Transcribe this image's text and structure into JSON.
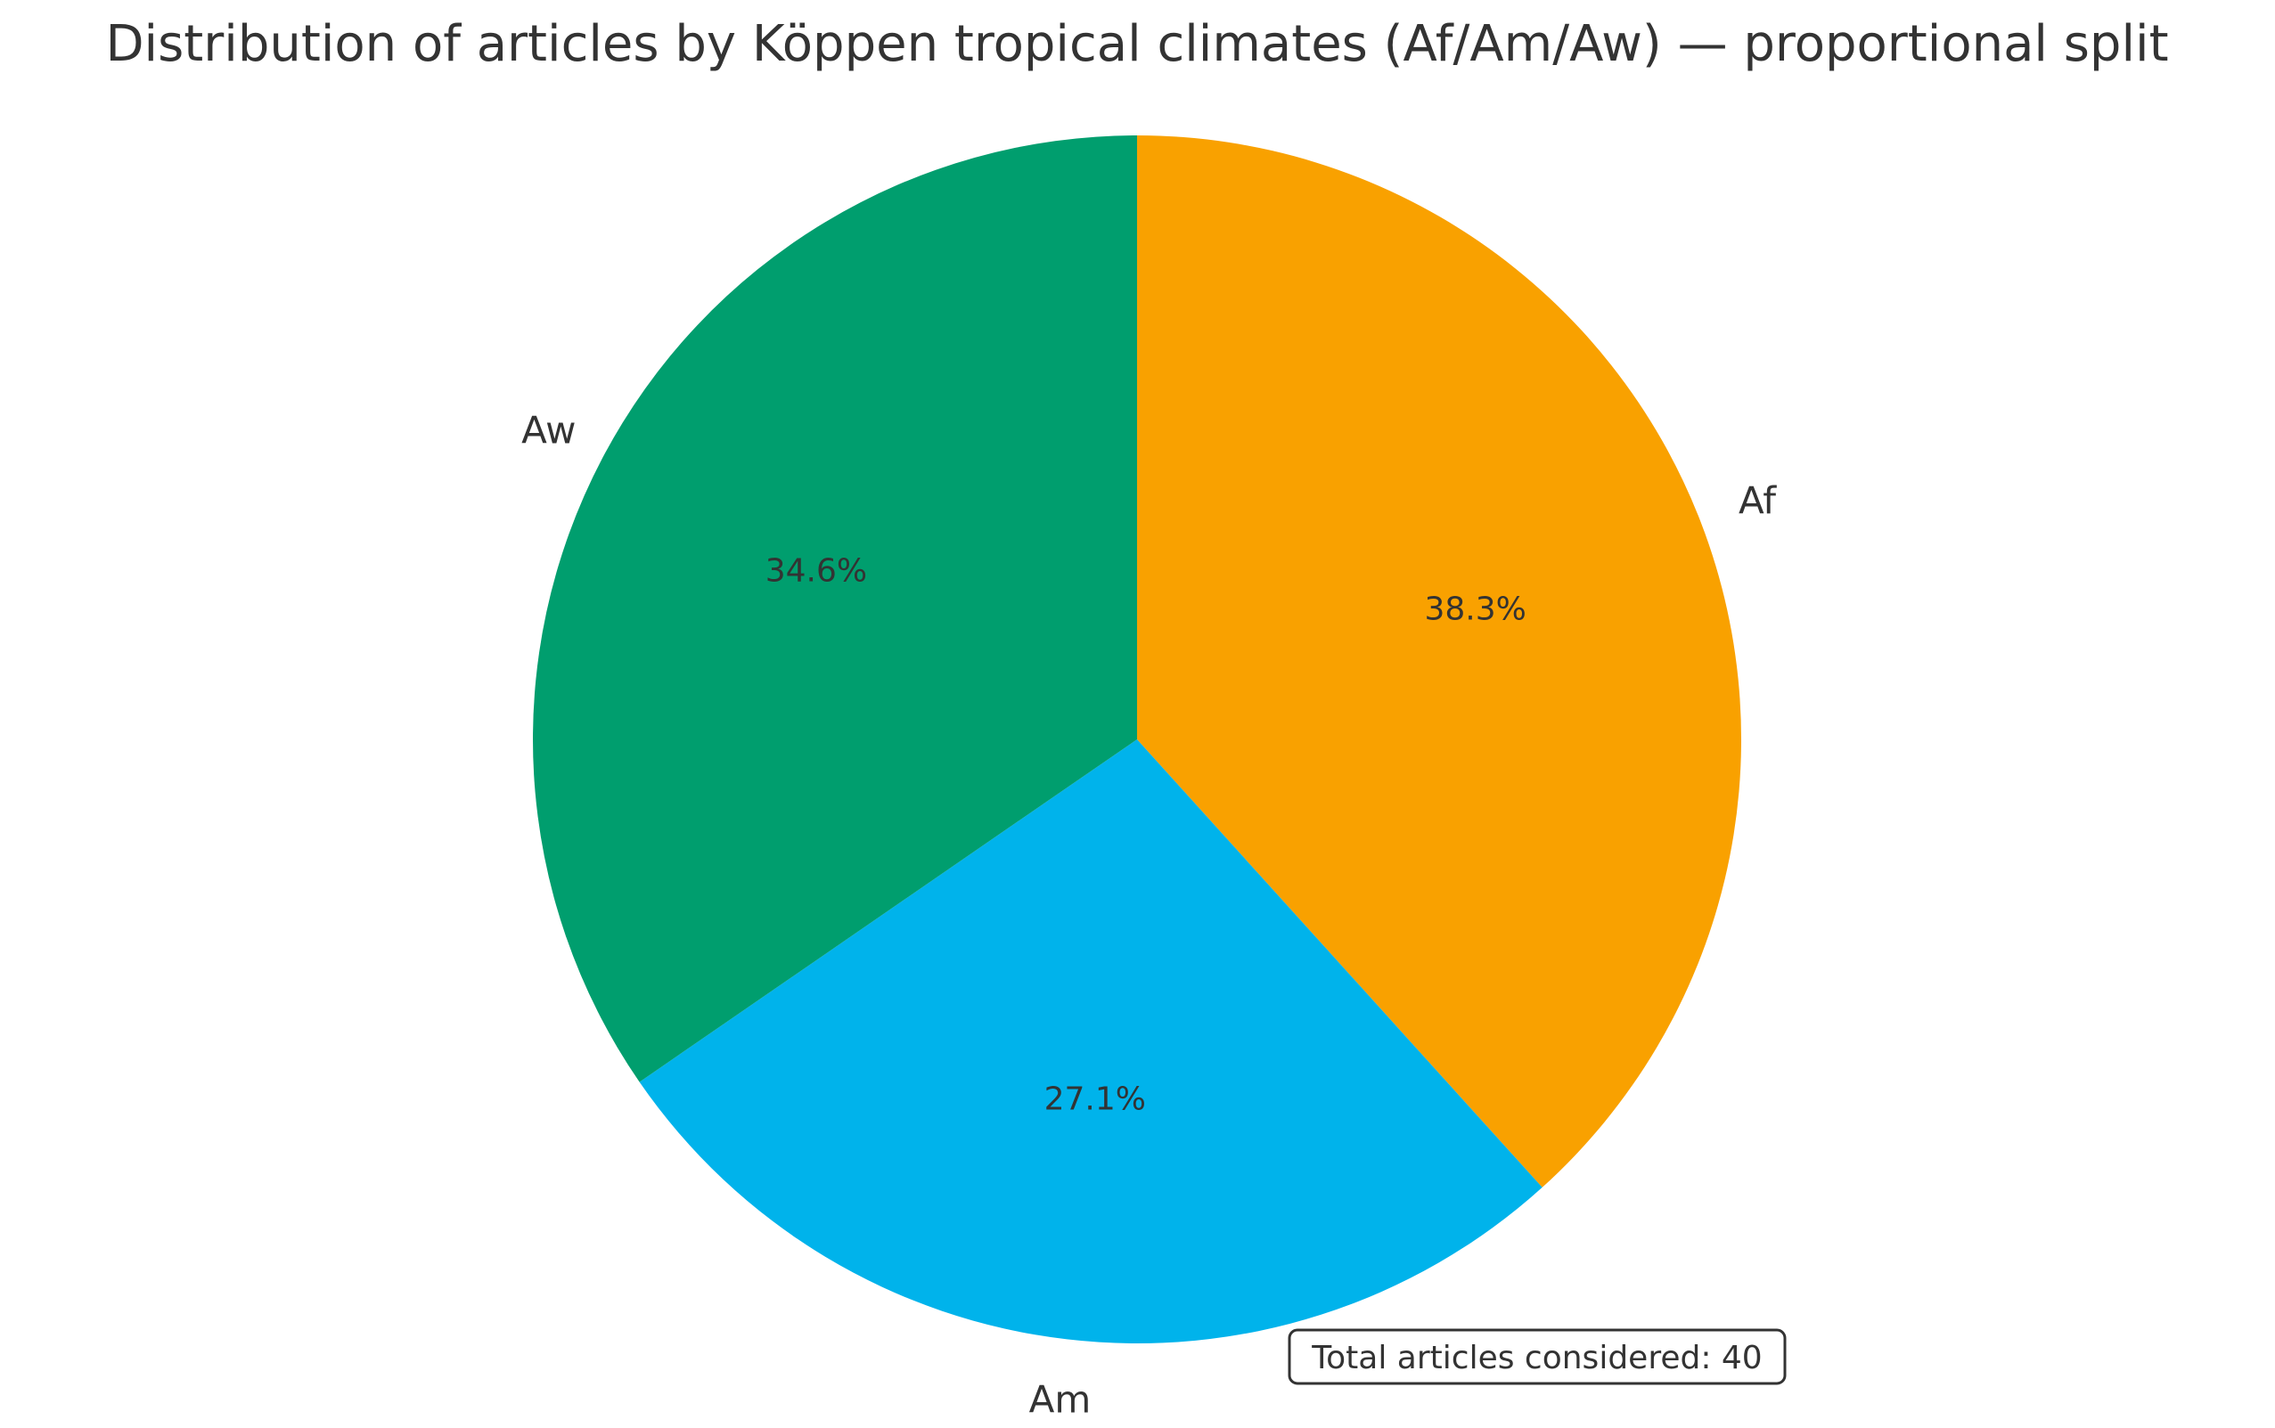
{
  "chart_data": {
    "type": "pie",
    "title": "Distribution of articles by Köppen tropical climates (Af/Am/Aw) — proportional split",
    "categories": [
      "Af",
      "Am",
      "Aw"
    ],
    "values": [
      38.3,
      27.1,
      34.6
    ],
    "value_labels": [
      "38.3%",
      "27.1%",
      "34.6%"
    ],
    "colors": [
      "#F9A100",
      "#00B3EB",
      "#009E6E"
    ],
    "start_angle": "top, clockwise",
    "annotation": "Total articles considered: 40",
    "annotation_position": "bottom-right",
    "legend": "none"
  }
}
